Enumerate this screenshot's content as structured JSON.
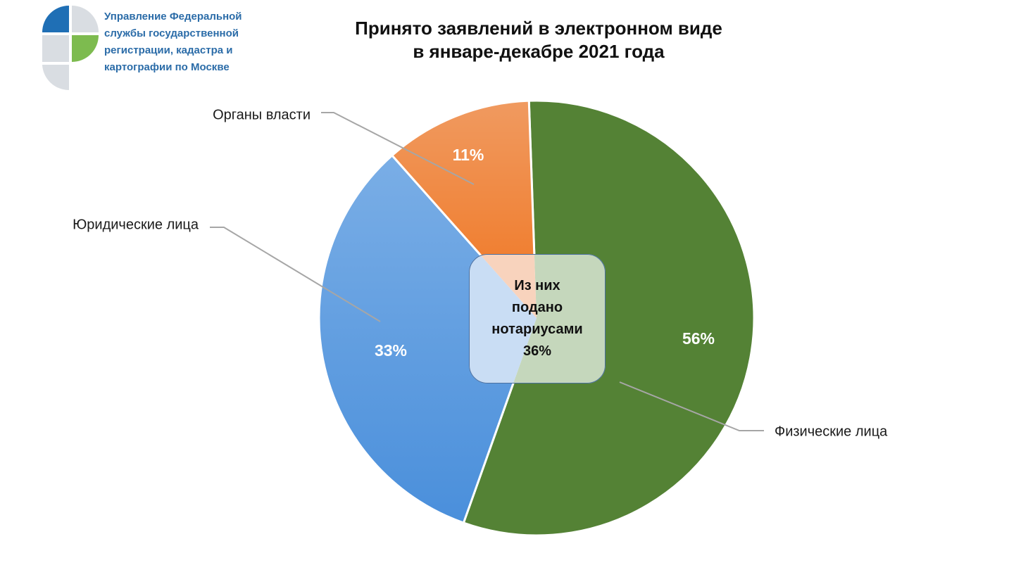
{
  "org": {
    "lines": [
      "Управление Федеральной",
      "службы государственной",
      "регистрации, кадастра и",
      "картографии по Москве"
    ],
    "logo_colors": [
      "#1f6fb5",
      "#7dbb4f",
      "#d9dde2"
    ]
  },
  "chart_data": {
    "type": "pie",
    "title": [
      "Принято заявлений в электронном виде",
      "в январе-декабре 2021 года"
    ],
    "start_angle_deg": -2,
    "slices": [
      {
        "name": "Физические лица",
        "value": 56,
        "label": "56%",
        "color": "#548235"
      },
      {
        "name": "Юридические лица",
        "value": 33,
        "label": "33%",
        "color": "#5b9bd5"
      },
      {
        "name": "Органы власти",
        "value": 11,
        "label": "11%",
        "color": "#ed7d31"
      }
    ],
    "inset": {
      "lines": [
        "Из них",
        "подано",
        "нотариусами",
        "36%"
      ],
      "value": 36
    },
    "legend": "none"
  }
}
